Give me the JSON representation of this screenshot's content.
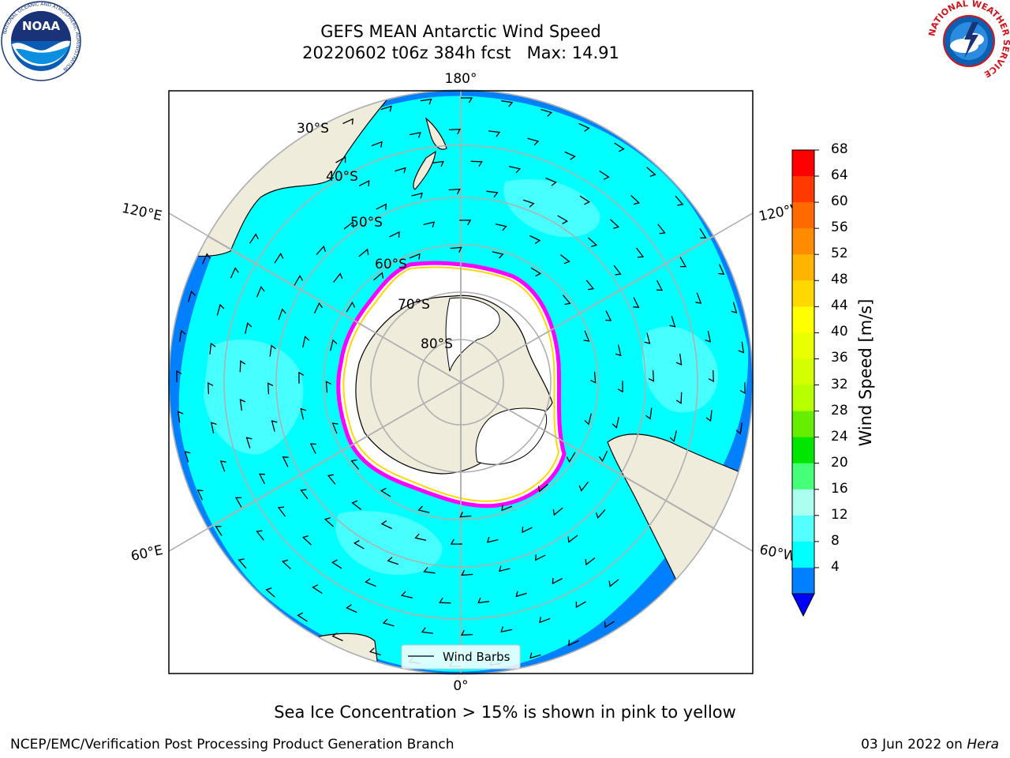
{
  "title": {
    "line1": "GEFS MEAN Antarctic Wind Speed",
    "line2": "20220602 t06z 384h fcst   Max: 14.91"
  },
  "longitude_labels": {
    "top": "180°",
    "bottom": "0°",
    "upper_left": "120°E",
    "upper_right": "120°W",
    "lower_left": "60°E",
    "lower_right": "60°W"
  },
  "latitude_labels": [
    "30°S",
    "40°S",
    "50°S",
    "60°S",
    "70°S",
    "80°S"
  ],
  "legend": {
    "label": "Wind Barbs"
  },
  "colorbar": {
    "title": "Wind Speed [m/s]",
    "ticks": [
      "68",
      "64",
      "60",
      "56",
      "52",
      "48",
      "44",
      "40",
      "36",
      "32",
      "28",
      "24",
      "20",
      "16",
      "12",
      "8",
      "4"
    ],
    "colors": [
      "#ff0000",
      "#ff3a00",
      "#ff6a00",
      "#ff8c00",
      "#ffb400",
      "#ffd800",
      "#ffff00",
      "#eaff00",
      "#d4ff00",
      "#b8ff00",
      "#66ee00",
      "#00e600",
      "#44ff77",
      "#aaffee",
      "#55ffff",
      "#00ffff",
      "#0080ff"
    ],
    "under_color": "#0000ff"
  },
  "colors": {
    "ocean_low": "#0080ff",
    "ocean_mid": "#00ffff",
    "ocean_high": "#55ffff",
    "land": "#efecdc",
    "sea_ice": "#ffffff",
    "ice_edge": "#ff00ff"
  },
  "caption": "Sea Ice Concentration > 15% is shown in pink to yellow",
  "footer": {
    "left": "NCEP/EMC/Verification Post Processing Product Generation Branch",
    "right_date": "03 Jun 2022 on ",
    "right_host": "Hera"
  },
  "logos": {
    "noaa_text": "NOAA",
    "noaa_ring_top": "NATIONAL OCEANIC AND ATMOSPHERIC ADMINISTRATION",
    "noaa_ring_bottom": "U.S. DEPARTMENT OF COMMERCE",
    "nws_ring": "NATIONAL WEATHER SERVICE"
  }
}
